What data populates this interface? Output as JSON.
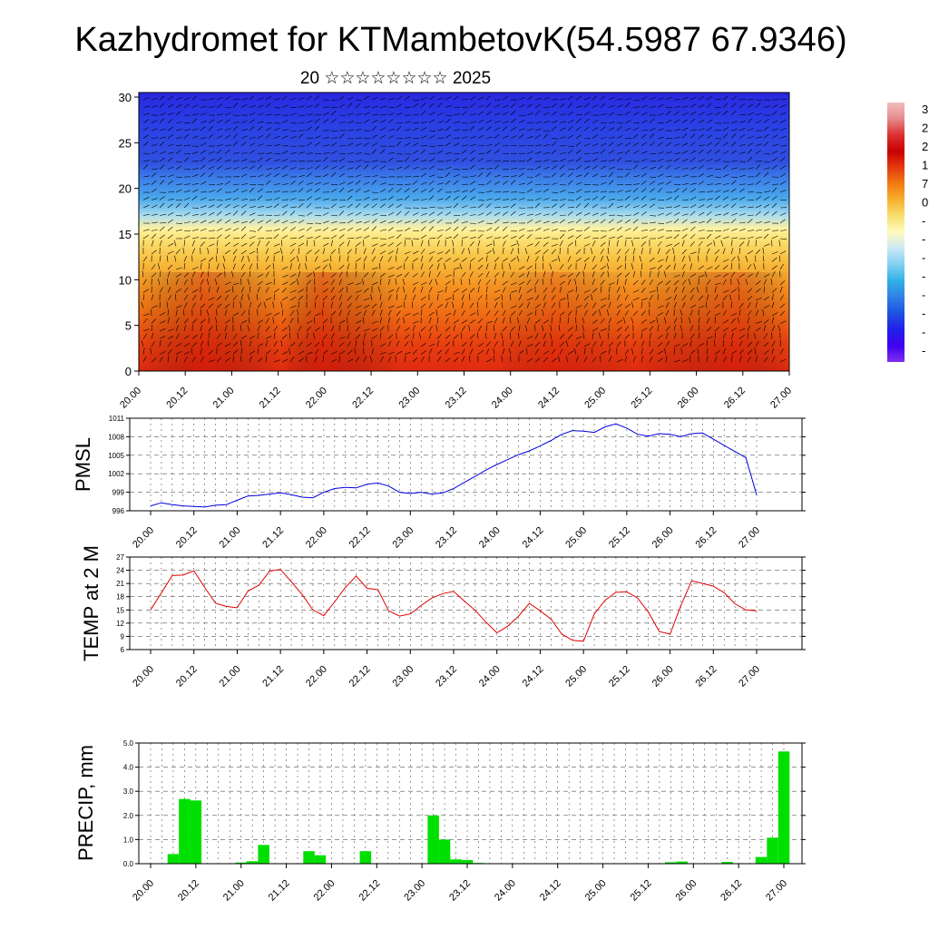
{
  "header": {
    "title": "Kazhydromet for KTMambetovK(54.5987 67.9346)",
    "subtitle": "20 ☆☆☆☆☆☆☆☆ 2025"
  },
  "x_ticks": [
    "20.00",
    "20.12",
    "21.00",
    "21.12",
    "22.00",
    "22.12",
    "23.00",
    "23.12",
    "24.00",
    "24.12",
    "25.00",
    "25.12",
    "26.00",
    "26.12",
    "27.00"
  ],
  "colors": {
    "pmsl_line": "#0000e0",
    "temp_line": "#e00000",
    "precip_bar": "#00e000"
  },
  "chart_data": [
    {
      "type": "heatmap",
      "id": "temperature-wind-cross-section",
      "title": "",
      "ylabel": "",
      "y_ticks": [
        "0",
        "5",
        "10",
        "15",
        "20",
        "25",
        "30"
      ],
      "ylim": [
        0,
        30.5
      ],
      "colorbar_labels": [
        "3",
        "2",
        "2",
        "1",
        "7",
        "0",
        "-",
        "-",
        "-",
        "-",
        "-",
        "-",
        "-",
        "-"
      ],
      "colorbar_colors": [
        "#f2bcbc",
        "#e58a8a",
        "#dd3030",
        "#c80000",
        "#e43a10",
        "#f37b10",
        "#f7b030",
        "#f8e070",
        "#fffac0",
        "#c8e8f8",
        "#80d0f0",
        "#30b0e8",
        "#2f80e6",
        "#1f50e0",
        "#2020e8",
        "#4000f0",
        "#8030f0"
      ]
    },
    {
      "type": "line",
      "id": "pmsl",
      "ylabel": "PMSL",
      "y_ticks": [
        "996",
        "999",
        "1002",
        "1005",
        "1008",
        "1011"
      ],
      "ylim": [
        996,
        1011
      ],
      "x": [
        0,
        1,
        2,
        3,
        4,
        5,
        6,
        7,
        8,
        9,
        10,
        11,
        12,
        13,
        14,
        15,
        16,
        17,
        18,
        19,
        20,
        21,
        22,
        23,
        24,
        25,
        26,
        27,
        28,
        29,
        30,
        31,
        32,
        33,
        34,
        35,
        36,
        37,
        38,
        39,
        40,
        41,
        42,
        43,
        44,
        45,
        46,
        47,
        48,
        49,
        50,
        51,
        52,
        53,
        54,
        55,
        56
      ],
      "series": [
        {
          "values": [
            996.8,
            997.3,
            997.0,
            996.8,
            996.7,
            996.6,
            996.9,
            997.0,
            997.7,
            998.4,
            998.5,
            998.7,
            998.9,
            998.6,
            998.2,
            998.1,
            999.0,
            999.6,
            999.8,
            999.7,
            1000.3,
            1000.5,
            1000.0,
            999.0,
            998.8,
            999.0,
            998.7,
            998.9,
            999.6,
            1000.6,
            1001.6,
            1002.6,
            1003.5,
            1004.3,
            1005.1,
            1005.7,
            1006.5,
            1007.4,
            1008.4,
            1009.0,
            1008.9,
            1008.7,
            1009.6,
            1010.1,
            1009.4,
            1008.4,
            1008.1,
            1008.5,
            1008.4,
            1008.0,
            1008.5,
            1008.6,
            1007.6,
            1006.6,
            1005.6,
            1004.6,
            998.6
          ]
        }
      ]
    },
    {
      "type": "line",
      "id": "temp-2m",
      "ylabel": "TEMP at 2 M",
      "y_ticks": [
        "6",
        "9",
        "12",
        "15",
        "18",
        "21",
        "24",
        "27"
      ],
      "ylim": [
        6,
        27
      ],
      "x": [
        0,
        2,
        3,
        4,
        5,
        6,
        7,
        8,
        9,
        10,
        11,
        12,
        13,
        14,
        15,
        16,
        17,
        18,
        19,
        20,
        21,
        22,
        23,
        24,
        25,
        26,
        27,
        28,
        29,
        30,
        31,
        32,
        33,
        34,
        35,
        36,
        37,
        38,
        39,
        40,
        41,
        42,
        43,
        44,
        45,
        46,
        47,
        48,
        49,
        50,
        51,
        52,
        53,
        54,
        55,
        56
      ],
      "series": [
        {
          "values": [
            15.0,
            22.8,
            22.9,
            23.9,
            20.1,
            16.5,
            15.8,
            15.5,
            19.3,
            20.6,
            23.8,
            24.2,
            21.4,
            18.5,
            15.0,
            13.7,
            16.8,
            20.1,
            22.7,
            19.9,
            19.6,
            14.8,
            13.6,
            14.1,
            16.0,
            17.7,
            18.7,
            19.2,
            17.0,
            14.9,
            12.2,
            9.8,
            11.3,
            13.6,
            16.5,
            14.8,
            12.9,
            9.5,
            8.1,
            7.9,
            14.1,
            17.2,
            19.0,
            19.1,
            17.7,
            14.5,
            10.1,
            9.5,
            16.0,
            21.6,
            21.0,
            20.4,
            18.9,
            16.4,
            15.0,
            14.8
          ]
        }
      ]
    },
    {
      "type": "bar",
      "id": "precip",
      "ylabel": "PRECIP, mm",
      "y_ticks": [
        "0.0",
        "1.0",
        "2.0",
        "3.0",
        "4.0",
        "5.0"
      ],
      "ylim": [
        0,
        5
      ],
      "x": [
        2,
        3,
        4,
        8,
        9,
        10,
        14,
        15,
        19,
        25,
        26,
        27,
        28,
        29,
        30,
        45,
        46,
        47,
        51,
        54,
        55,
        56
      ],
      "values": [
        0.4,
        2.68,
        2.62,
        0.05,
        0.1,
        0.78,
        0.52,
        0.35,
        0.52,
        2.0,
        1.0,
        0.18,
        0.15,
        0.03,
        0.02,
        0.02,
        0.06,
        0.09,
        0.07,
        0.28,
        1.08,
        4.65
      ]
    }
  ]
}
